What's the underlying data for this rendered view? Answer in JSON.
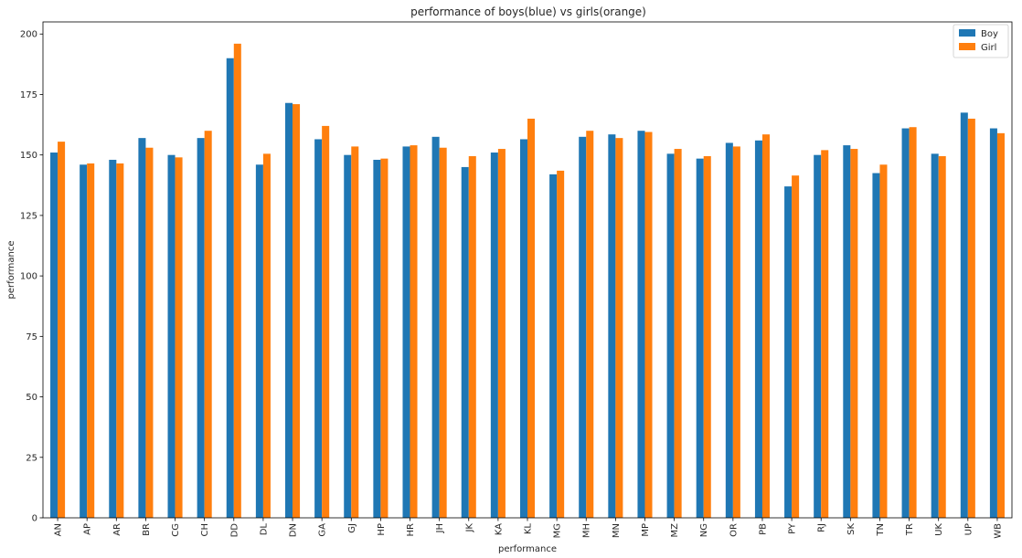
{
  "chart_data": {
    "type": "bar",
    "title": "performance of boys(blue) vs girls(orange)",
    "xlabel": "performance",
    "ylabel": "performance",
    "ylim": [
      0,
      205
    ],
    "yticks": [
      0,
      25,
      50,
      75,
      100,
      125,
      150,
      175,
      200
    ],
    "grid": false,
    "legend_position": "top-right",
    "categories": [
      "AN",
      "AP",
      "AR",
      "BR",
      "CG",
      "CH",
      "DD",
      "DL",
      "DN",
      "GA",
      "GJ",
      "HP",
      "HR",
      "JH",
      "JK",
      "KA",
      "KL",
      "MG",
      "MH",
      "MN",
      "MP",
      "MZ",
      "NG",
      "OR",
      "PB",
      "PY",
      "RJ",
      "SK",
      "TN",
      "TR",
      "UK",
      "UP",
      "WB"
    ],
    "series": [
      {
        "name": "Boy",
        "color": "#1f77b4",
        "values": [
          151,
          146,
          148,
          157,
          150,
          157,
          190,
          146,
          171.5,
          156.5,
          150,
          148,
          153.5,
          157.5,
          145,
          151,
          156.5,
          142,
          157.5,
          158.5,
          160,
          150.5,
          148.5,
          155,
          156,
          137,
          150,
          154,
          142.5,
          161,
          150.5,
          167.5,
          161
        ]
      },
      {
        "name": "Girl",
        "color": "#ff7f0e",
        "values": [
          155.5,
          146.5,
          146.5,
          153,
          149,
          160,
          196,
          150.5,
          171,
          162,
          153.5,
          148.5,
          154,
          153,
          149.5,
          152.5,
          165,
          143.5,
          160,
          157,
          159.5,
          152.5,
          149.5,
          153.5,
          158.5,
          141.5,
          152,
          152.5,
          146,
          161.5,
          149.5,
          165,
          159
        ]
      }
    ]
  }
}
